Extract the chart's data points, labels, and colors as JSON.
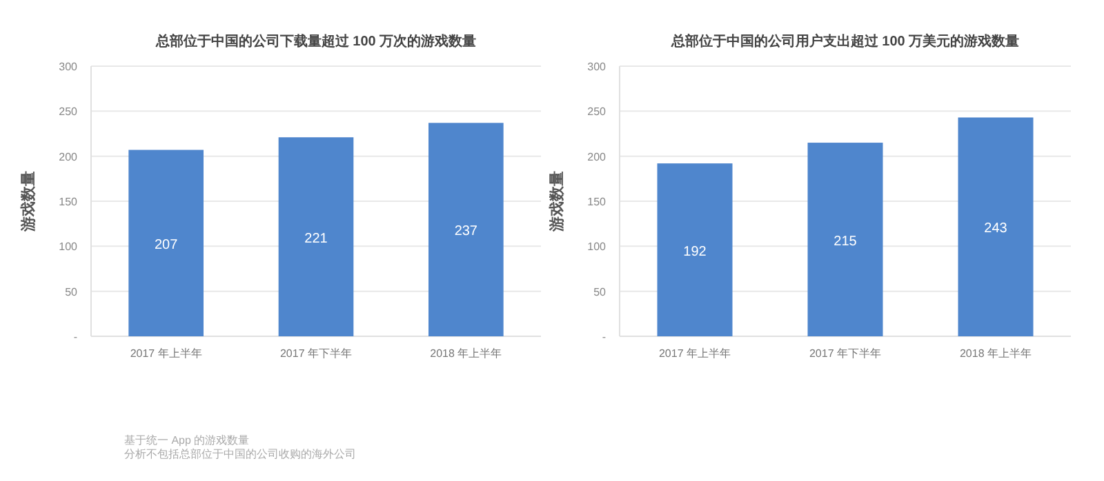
{
  "chart_data": [
    {
      "type": "bar",
      "title": "总部位于中国的公司下载量超过 100 万次的游戏数量",
      "ylabel": "游戏数量",
      "categories": [
        "2017 年上半年",
        "2017 年下半年",
        "2018 年上半年"
      ],
      "series": [
        {
          "color": "#4f86cd",
          "values": [
            207,
            221,
            237
          ]
        }
      ],
      "ylim": [
        0,
        300
      ],
      "yticks": [
        {
          "value": 0,
          "label": "-"
        },
        50,
        100,
        150,
        200,
        250,
        300
      ],
      "grid": "y",
      "data_labels": true,
      "annotations": [
        "基于统一 App 的游戏数量",
        "分析不包括总部位于中国的公司收购的海外公司"
      ]
    },
    {
      "type": "bar",
      "title": "总部位于中国的公司用户支出超过 100 万美元的游戏数量",
      "ylabel": "游戏数量",
      "categories": [
        "2017 年上半年",
        "2017 年下半年",
        "2018 年上半年"
      ],
      "series": [
        {
          "color": "#4f86cd",
          "values": [
            192,
            215,
            243
          ]
        }
      ],
      "ylim": [
        0,
        300
      ],
      "yticks": [
        {
          "value": 0,
          "label": "-"
        },
        50,
        100,
        150,
        200,
        250,
        300
      ],
      "grid": "y",
      "data_labels": true
    }
  ]
}
